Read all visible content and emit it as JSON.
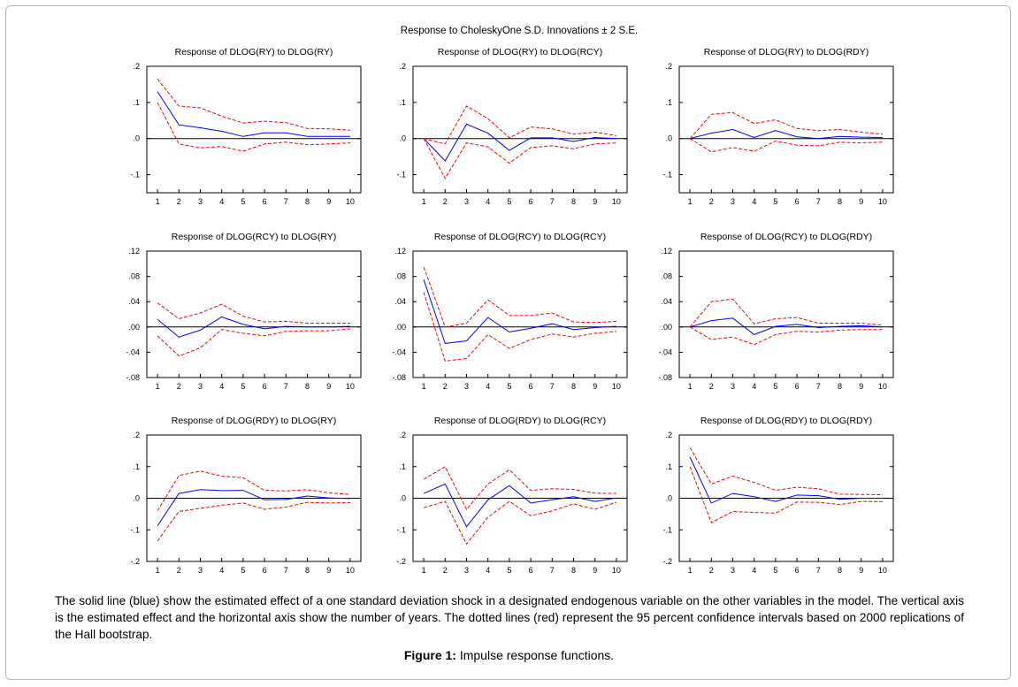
{
  "header": {
    "title": "Response to CholeskyOne S.D. Innovations ± 2 S.E."
  },
  "caption": {
    "note": "The solid line (blue) show the estimated effect of a one standard deviation shock in a designated endogenous variable on the other variables in the model. The vertical axis is the estimated effect and the horizontal axis show the number of years. The dotted lines (red) represent the 95 percent confidence intervals based on 2000 replications of the Hall bootstrap.",
    "figure_label": "Figure 1:",
    "figure_title": "Impulse response functions."
  },
  "colors": {
    "response": "#0000ff",
    "bands": "#ff0000",
    "zero_line": "#000000",
    "frame": "#000000"
  },
  "chart_data": [
    {
      "type": "line",
      "title": "Response of DLOG(RY) to DLOG(RY)",
      "x": [
        1,
        2,
        3,
        4,
        5,
        6,
        7,
        8,
        9,
        10
      ],
      "ylim": [
        -0.15,
        0.2
      ],
      "yticks": [
        ".2",
        ".1",
        ".0",
        "-.1"
      ],
      "ytick_values": [
        0.2,
        0.1,
        0.0,
        -0.1
      ],
      "series": [
        {
          "name": "response",
          "values": [
            0.13,
            0.038,
            0.03,
            0.02,
            0.006,
            0.016,
            0.016,
            0.006,
            0.006,
            0.006
          ]
        },
        {
          "name": "upper_2se",
          "values": [
            0.165,
            0.09,
            0.085,
            0.062,
            0.043,
            0.048,
            0.044,
            0.028,
            0.027,
            0.023
          ]
        },
        {
          "name": "lower_2se",
          "values": [
            0.1,
            -0.015,
            -0.026,
            -0.022,
            -0.035,
            -0.015,
            -0.01,
            -0.017,
            -0.015,
            -0.012
          ]
        }
      ]
    },
    {
      "type": "line",
      "title": "Response of DLOG(RY) to DLOG(RCY)",
      "x": [
        1,
        2,
        3,
        4,
        5,
        6,
        7,
        8,
        9,
        10
      ],
      "ylim": [
        -0.15,
        0.2
      ],
      "yticks": [
        ".2",
        ".1",
        ".0",
        "-.1"
      ],
      "ytick_values": [
        0.2,
        0.1,
        0.0,
        -0.1
      ],
      "series": [
        {
          "name": "response",
          "values": [
            0.0,
            -0.062,
            0.04,
            0.015,
            -0.033,
            0.002,
            0.002,
            -0.008,
            0.003,
            0.0
          ]
        },
        {
          "name": "upper_2se",
          "values": [
            0.0,
            -0.015,
            0.09,
            0.055,
            0.002,
            0.032,
            0.027,
            0.012,
            0.018,
            0.008
          ]
        },
        {
          "name": "lower_2se",
          "values": [
            0.0,
            -0.11,
            -0.012,
            -0.023,
            -0.068,
            -0.025,
            -0.02,
            -0.028,
            -0.015,
            -0.012
          ]
        }
      ]
    },
    {
      "type": "line",
      "title": "Response of DLOG(RY) to DLOG(RDY)",
      "x": [
        1,
        2,
        3,
        4,
        5,
        6,
        7,
        8,
        9,
        10
      ],
      "ylim": [
        -0.15,
        0.2
      ],
      "yticks": [
        ".2",
        ".1",
        ".0",
        "-.1"
      ],
      "ytick_values": [
        0.2,
        0.1,
        0.0,
        -0.1
      ],
      "series": [
        {
          "name": "response",
          "values": [
            0.0,
            0.015,
            0.025,
            0.003,
            0.022,
            0.005,
            0.0,
            0.006,
            0.004,
            0.003
          ]
        },
        {
          "name": "upper_2se",
          "values": [
            0.0,
            0.067,
            0.072,
            0.042,
            0.052,
            0.028,
            0.022,
            0.025,
            0.018,
            0.012
          ]
        },
        {
          "name": "lower_2se",
          "values": [
            0.0,
            -0.037,
            -0.025,
            -0.035,
            -0.007,
            -0.018,
            -0.02,
            -0.01,
            -0.012,
            -0.01
          ]
        }
      ]
    },
    {
      "type": "line",
      "title": "Response of DLOG(RCY) to DLOG(RY)",
      "x": [
        1,
        2,
        3,
        4,
        5,
        6,
        7,
        8,
        9,
        10
      ],
      "ylim": [
        -0.08,
        0.12
      ],
      "yticks": [
        ".12",
        ".08",
        ".04",
        ".00",
        "-.04",
        "-.08"
      ],
      "ytick_values": [
        0.12,
        0.08,
        0.04,
        0.0,
        -0.04,
        -0.08
      ],
      "series": [
        {
          "name": "response",
          "values": [
            0.012,
            -0.016,
            -0.005,
            0.016,
            0.004,
            -0.003,
            0.001,
            0.0,
            0.0,
            0.001
          ]
        },
        {
          "name": "upper_2se",
          "values": [
            0.038,
            0.013,
            0.022,
            0.036,
            0.017,
            0.008,
            0.009,
            0.006,
            0.006,
            0.006
          ]
        },
        {
          "name": "lower_2se",
          "values": [
            -0.014,
            -0.046,
            -0.033,
            -0.004,
            -0.01,
            -0.014,
            -0.007,
            -0.006,
            -0.006,
            -0.003
          ]
        }
      ]
    },
    {
      "type": "line",
      "title": "Response of DLOG(RCY) to DLOG(RCY)",
      "x": [
        1,
        2,
        3,
        4,
        5,
        6,
        7,
        8,
        9,
        10
      ],
      "ylim": [
        -0.08,
        0.12
      ],
      "yticks": [
        ".12",
        ".08",
        ".04",
        ".00",
        "-.04",
        "-.08"
      ],
      "ytick_values": [
        0.12,
        0.08,
        0.04,
        0.0,
        -0.04,
        -0.08
      ],
      "series": [
        {
          "name": "response",
          "values": [
            0.075,
            -0.026,
            -0.022,
            0.015,
            -0.008,
            -0.002,
            0.005,
            -0.004,
            -0.001,
            0.001
          ]
        },
        {
          "name": "upper_2se",
          "values": [
            0.095,
            0.0,
            0.006,
            0.043,
            0.018,
            0.018,
            0.022,
            0.008,
            0.007,
            0.009
          ]
        },
        {
          "name": "lower_2se",
          "values": [
            0.055,
            -0.054,
            -0.05,
            -0.012,
            -0.034,
            -0.02,
            -0.011,
            -0.016,
            -0.01,
            -0.007
          ]
        }
      ]
    },
    {
      "type": "line",
      "title": "Response of DLOG(RCY) to DLOG(RDY)",
      "x": [
        1,
        2,
        3,
        4,
        5,
        6,
        7,
        8,
        9,
        10
      ],
      "ylim": [
        -0.08,
        0.12
      ],
      "yticks": [
        ".12",
        ".08",
        ".04",
        ".00",
        "-.04",
        "-.08"
      ],
      "ytick_values": [
        0.12,
        0.08,
        0.04,
        0.0,
        -0.04,
        -0.08
      ],
      "series": [
        {
          "name": "response",
          "values": [
            0.0,
            0.01,
            0.014,
            -0.012,
            0.001,
            0.004,
            -0.001,
            0.001,
            0.002,
            0.0
          ]
        },
        {
          "name": "upper_2se",
          "values": [
            0.0,
            0.04,
            0.044,
            0.005,
            0.013,
            0.015,
            0.006,
            0.006,
            0.006,
            0.003
          ]
        },
        {
          "name": "lower_2se",
          "values": [
            0.0,
            -0.02,
            -0.016,
            -0.028,
            -0.012,
            -0.007,
            -0.008,
            -0.005,
            -0.004,
            -0.004
          ]
        }
      ]
    },
    {
      "type": "line",
      "title": "Response of DLOG(RDY) to DLOG(RY)",
      "x": [
        1,
        2,
        3,
        4,
        5,
        6,
        7,
        8,
        9,
        10
      ],
      "ylim": [
        -0.2,
        0.2
      ],
      "yticks": [
        ".2",
        ".1",
        ".0",
        "-.1",
        "-.2"
      ],
      "ytick_values": [
        0.2,
        0.1,
        0.0,
        -0.1,
        -0.2
      ],
      "series": [
        {
          "name": "response",
          "values": [
            -0.087,
            0.015,
            0.027,
            0.024,
            0.025,
            -0.005,
            -0.004,
            0.007,
            0.001,
            -0.001
          ]
        },
        {
          "name": "upper_2se",
          "values": [
            -0.04,
            0.072,
            0.086,
            0.07,
            0.065,
            0.025,
            0.023,
            0.027,
            0.017,
            0.012
          ]
        },
        {
          "name": "lower_2se",
          "values": [
            -0.135,
            -0.042,
            -0.032,
            -0.022,
            -0.015,
            -0.035,
            -0.028,
            -0.013,
            -0.015,
            -0.014
          ]
        }
      ]
    },
    {
      "type": "line",
      "title": "Response of DLOG(RDY) to DLOG(RCY)",
      "x": [
        1,
        2,
        3,
        4,
        5,
        6,
        7,
        8,
        9,
        10
      ],
      "ylim": [
        -0.2,
        0.2
      ],
      "yticks": [
        ".2",
        ".1",
        ".0",
        "-.1",
        "-.2"
      ],
      "ytick_values": [
        0.2,
        0.1,
        0.0,
        -0.1,
        -0.2
      ],
      "series": [
        {
          "name": "response",
          "values": [
            0.015,
            0.045,
            -0.09,
            -0.005,
            0.04,
            -0.015,
            -0.005,
            0.005,
            -0.01,
            0.001
          ]
        },
        {
          "name": "upper_2se",
          "values": [
            0.06,
            0.1,
            -0.035,
            0.045,
            0.09,
            0.025,
            0.03,
            0.028,
            0.016,
            0.015
          ]
        },
        {
          "name": "lower_2se",
          "values": [
            -0.03,
            -0.01,
            -0.145,
            -0.06,
            -0.01,
            -0.055,
            -0.04,
            -0.018,
            -0.035,
            -0.013
          ]
        }
      ]
    },
    {
      "type": "line",
      "title": "Response of DLOG(RDY) to DLOG(RDY)",
      "x": [
        1,
        2,
        3,
        4,
        5,
        6,
        7,
        8,
        9,
        10
      ],
      "ylim": [
        -0.2,
        0.2
      ],
      "yticks": [
        ".2",
        ".1",
        ".0",
        "-.1",
        "-.2"
      ],
      "ytick_values": [
        0.2,
        0.1,
        0.0,
        -0.1,
        -0.2
      ],
      "series": [
        {
          "name": "response",
          "values": [
            0.13,
            -0.015,
            0.015,
            0.005,
            -0.01,
            0.01,
            0.008,
            -0.003,
            0.0,
            0.0
          ]
        },
        {
          "name": "upper_2se",
          "values": [
            0.16,
            0.045,
            0.07,
            0.05,
            0.025,
            0.035,
            0.03,
            0.013,
            0.012,
            0.011
          ]
        },
        {
          "name": "lower_2se",
          "values": [
            0.1,
            -0.077,
            -0.042,
            -0.045,
            -0.047,
            -0.012,
            -0.013,
            -0.02,
            -0.01,
            -0.011
          ]
        }
      ]
    }
  ]
}
